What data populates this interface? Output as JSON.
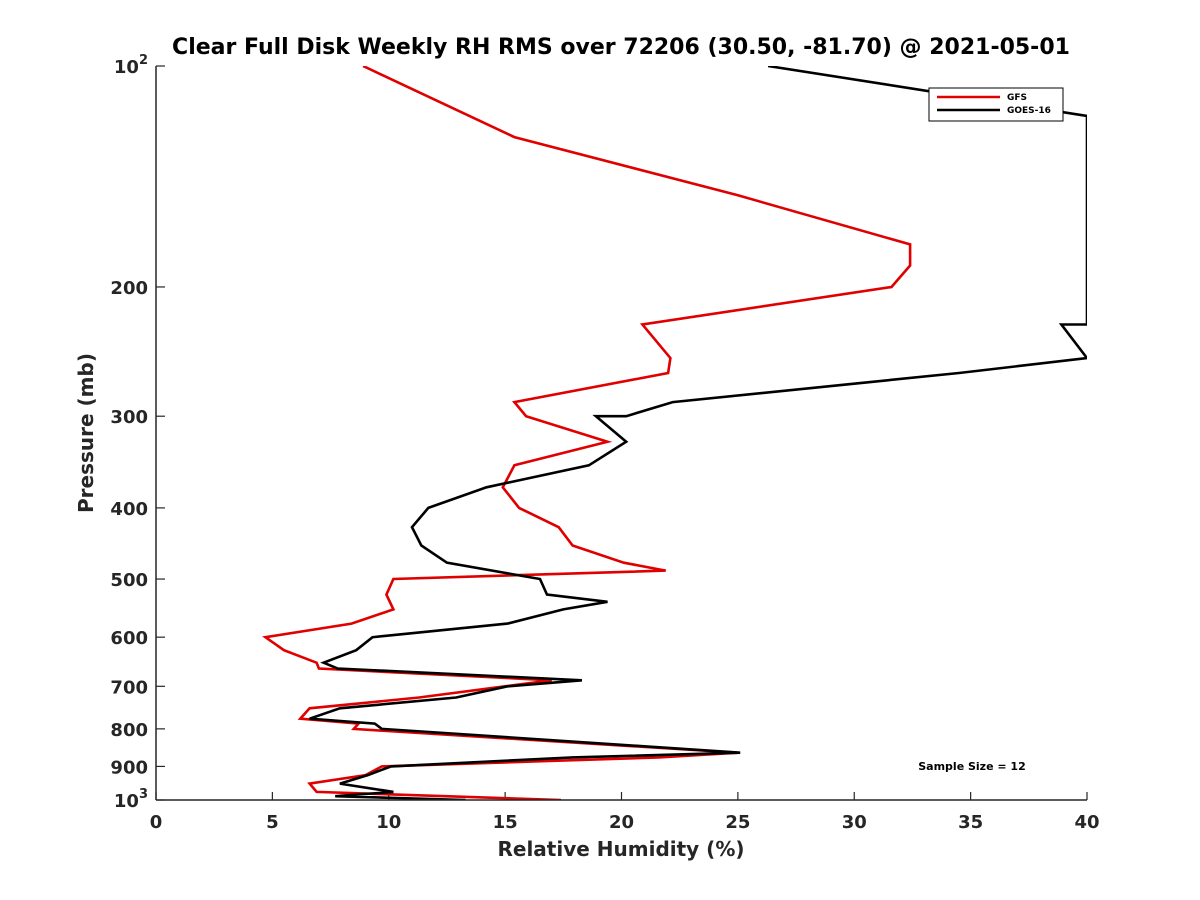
{
  "chart_data": {
    "type": "line",
    "title": "Clear Full Disk Weekly RH RMS over 72206 (30.50, -81.70) @ 2021-05-01",
    "xlabel": "Relative Humidity (%)",
    "ylabel": "Pressure (mb)",
    "xlim": [
      0,
      40
    ],
    "ylim": [
      100,
      1000
    ],
    "y_scale": "log",
    "y_reversed": true,
    "grid": false,
    "x_ticks": [
      0,
      5,
      10,
      15,
      20,
      25,
      30,
      35,
      40
    ],
    "x_tick_labels": [
      "0",
      "5",
      "10",
      "15",
      "20",
      "25",
      "30",
      "35",
      "40"
    ],
    "y_ticks": [
      100,
      200,
      300,
      400,
      500,
      600,
      700,
      800,
      900,
      1000
    ],
    "y_tick_labels": [
      {
        "base": "10",
        "exp": "2"
      },
      {
        "base": "200",
        "exp": ""
      },
      {
        "base": "300",
        "exp": ""
      },
      {
        "base": "400",
        "exp": ""
      },
      {
        "base": "500",
        "exp": ""
      },
      {
        "base": "600",
        "exp": ""
      },
      {
        "base": "700",
        "exp": ""
      },
      {
        "base": "800",
        "exp": ""
      },
      {
        "base": "900",
        "exp": ""
      },
      {
        "base": "10",
        "exp": "3"
      }
    ],
    "legend_position": "top-right",
    "annotation": "Sample Size = 12",
    "series": [
      {
        "name": "GFS",
        "color": "#e00000",
        "points": [
          [
            8.9,
            100
          ],
          [
            15.4,
            125
          ],
          [
            25.0,
            150
          ],
          [
            32.4,
            175
          ],
          [
            32.4,
            187
          ],
          [
            31.6,
            200
          ],
          [
            20.9,
            225
          ],
          [
            22.1,
            250
          ],
          [
            22.0,
            262
          ],
          [
            15.4,
            287
          ],
          [
            15.9,
            300
          ],
          [
            19.4,
            325
          ],
          [
            15.4,
            350
          ],
          [
            14.9,
            375
          ],
          [
            15.6,
            400
          ],
          [
            17.3,
            425
          ],
          [
            17.9,
            450
          ],
          [
            20.1,
            475
          ],
          [
            21.9,
            487
          ],
          [
            10.2,
            500
          ],
          [
            9.9,
            525
          ],
          [
            10.2,
            550
          ],
          [
            8.4,
            575
          ],
          [
            4.7,
            600
          ],
          [
            5.5,
            625
          ],
          [
            6.9,
            650
          ],
          [
            7.0,
            662
          ],
          [
            17.0,
            687
          ],
          [
            15.0,
            700
          ],
          [
            11.3,
            725
          ],
          [
            6.6,
            750
          ],
          [
            6.2,
            775
          ],
          [
            8.7,
            787
          ],
          [
            8.5,
            800
          ],
          [
            25.0,
            862
          ],
          [
            21.6,
            875
          ],
          [
            9.7,
            900
          ],
          [
            9.0,
            925
          ],
          [
            6.6,
            950
          ],
          [
            6.9,
            975
          ],
          [
            17.4,
            1000
          ]
        ]
      },
      {
        "name": "GOES-16",
        "color": "#000000",
        "points": [
          [
            26.3,
            100
          ],
          [
            40.0,
            117
          ],
          [
            40.0,
            225
          ],
          [
            38.9,
            225
          ],
          [
            40.0,
            250
          ],
          [
            34.5,
            262
          ],
          [
            22.2,
            287
          ],
          [
            20.2,
            300
          ],
          [
            18.9,
            300
          ],
          [
            20.2,
            325
          ],
          [
            18.6,
            350
          ],
          [
            14.2,
            375
          ],
          [
            11.7,
            400
          ],
          [
            11.0,
            425
          ],
          [
            11.4,
            450
          ],
          [
            12.5,
            475
          ],
          [
            16.5,
            500
          ],
          [
            16.8,
            525
          ],
          [
            19.4,
            537
          ],
          [
            17.5,
            550
          ],
          [
            15.1,
            575
          ],
          [
            9.3,
            600
          ],
          [
            8.6,
            625
          ],
          [
            7.2,
            650
          ],
          [
            7.8,
            662
          ],
          [
            18.3,
            687
          ],
          [
            15.1,
            700
          ],
          [
            12.9,
            725
          ],
          [
            7.9,
            750
          ],
          [
            6.6,
            775
          ],
          [
            9.4,
            787
          ],
          [
            9.7,
            800
          ],
          [
            25.1,
            862
          ],
          [
            17.9,
            875
          ],
          [
            10.1,
            900
          ],
          [
            9.1,
            925
          ],
          [
            7.9,
            950
          ],
          [
            10.2,
            975
          ],
          [
            7.7,
            988
          ],
          [
            13.3,
            1000
          ]
        ]
      }
    ]
  }
}
